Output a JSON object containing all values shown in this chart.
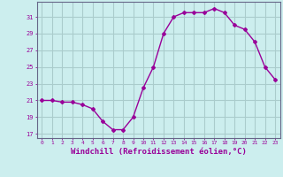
{
  "x": [
    0,
    1,
    2,
    3,
    4,
    5,
    6,
    7,
    8,
    9,
    10,
    11,
    12,
    13,
    14,
    15,
    16,
    17,
    18,
    19,
    20,
    21,
    22,
    23
  ],
  "y": [
    21.0,
    21.0,
    20.8,
    20.8,
    20.5,
    20.0,
    18.5,
    17.5,
    17.5,
    19.0,
    22.5,
    25.0,
    29.0,
    31.0,
    31.5,
    31.5,
    31.5,
    32.0,
    31.5,
    30.0,
    29.5,
    28.0,
    25.0,
    23.5
  ],
  "line_color": "#990099",
  "marker": "D",
  "marker_size": 2.0,
  "bg_color": "#cceeee",
  "grid_color": "#aacccc",
  "tick_color": "#990099",
  "xlabel": "Windchill (Refroidissement éolien,°C)",
  "xlabel_fontsize": 6.5,
  "ylabel_ticks": [
    17,
    19,
    21,
    23,
    25,
    27,
    29,
    31
  ],
  "xlim": [
    -0.5,
    23.5
  ],
  "ylim": [
    16.5,
    32.8
  ],
  "spine_color": "#666688",
  "label_color": "#990099"
}
